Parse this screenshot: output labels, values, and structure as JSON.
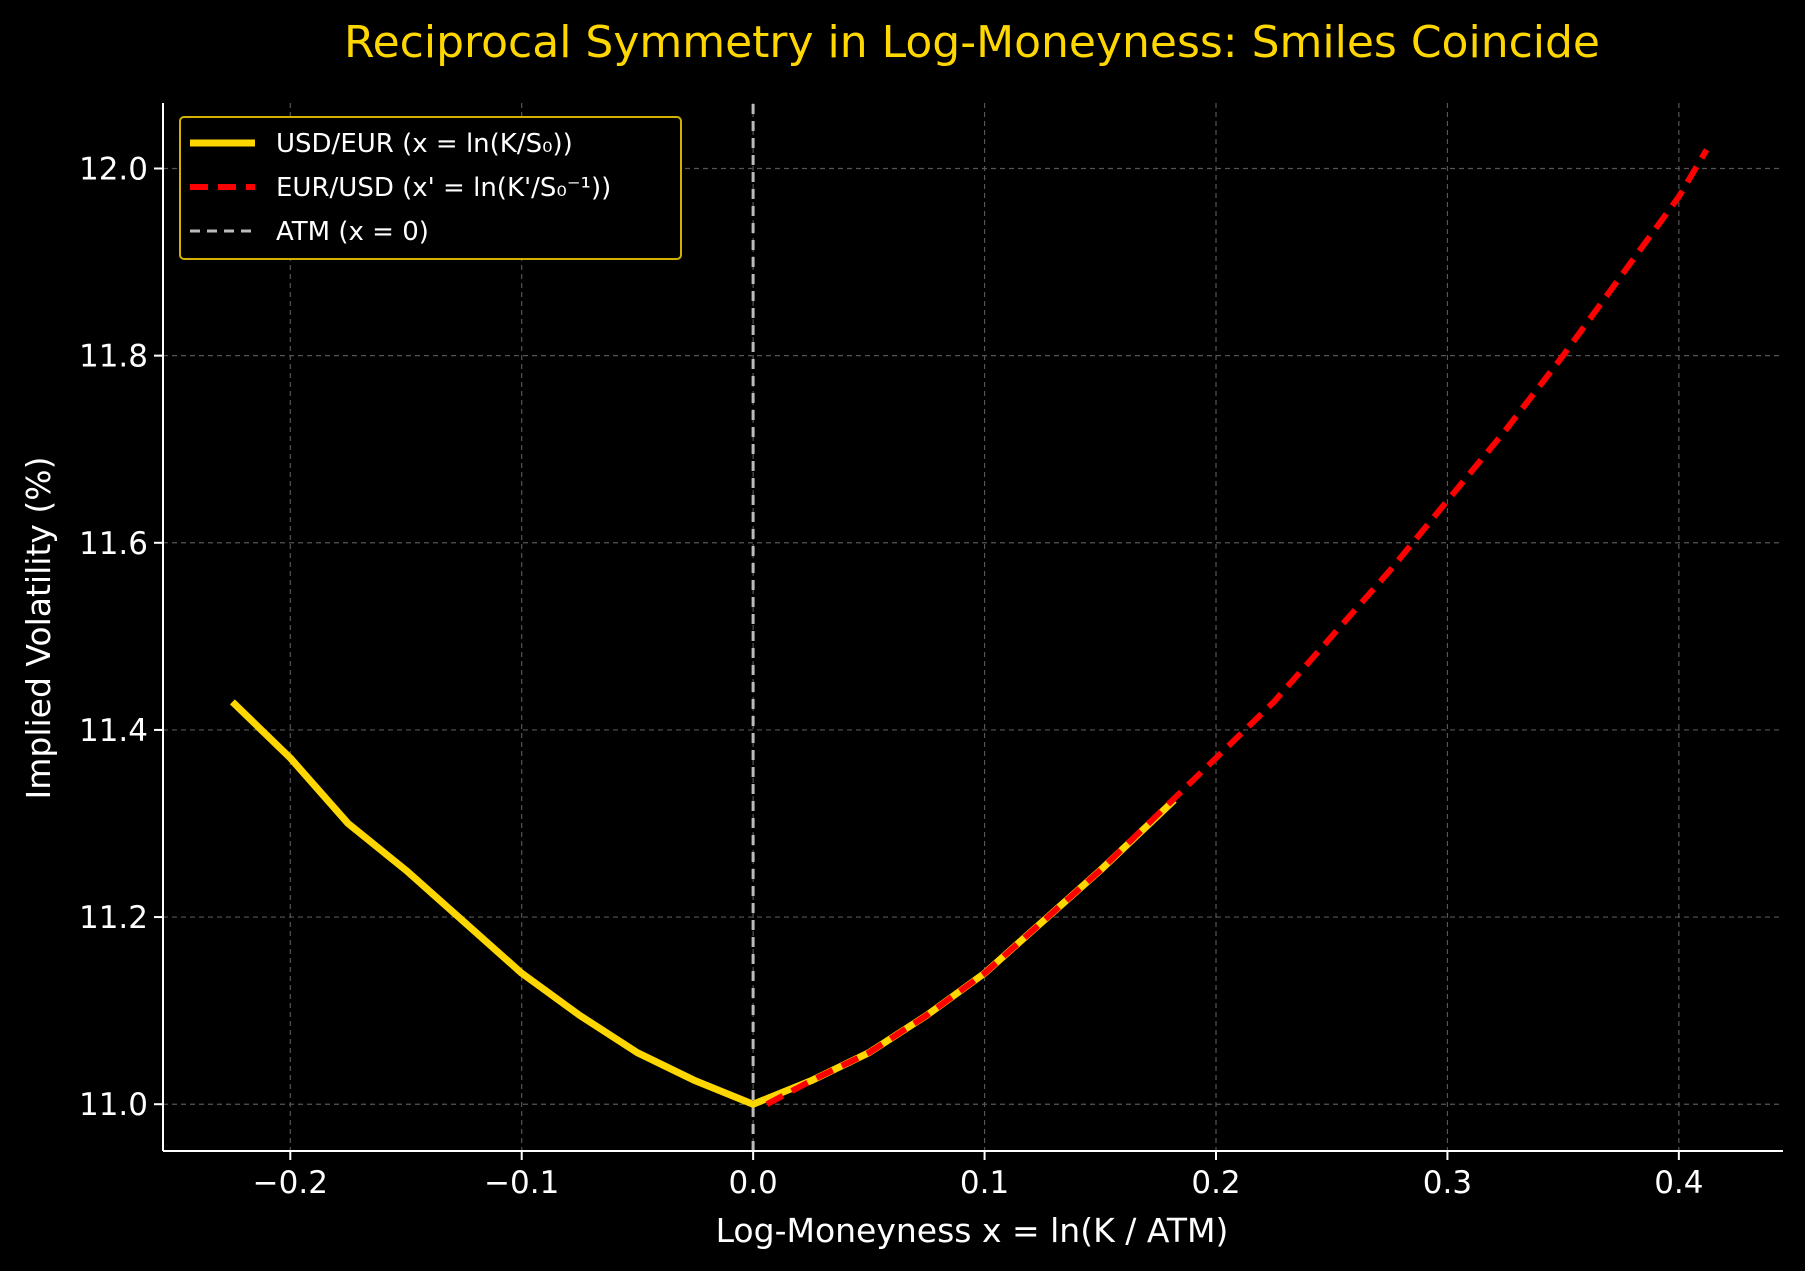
{
  "chart_data": {
    "type": "line",
    "title": "Reciprocal Symmetry in Log-Moneyness: Smiles Coincide",
    "xlabel": "Log-Moneyness  x = ln(K / ATM)",
    "ylabel": "Implied Volatility (%)",
    "xlim": [
      -0.255,
      0.445
    ],
    "ylim": [
      10.95,
      12.07
    ],
    "x_ticks": [
      -0.2,
      -0.1,
      0.0,
      0.1,
      0.2,
      0.3,
      0.4
    ],
    "x_tick_labels": [
      "−0.2",
      "−0.1",
      "0.0",
      "0.1",
      "0.2",
      "0.3",
      "0.4"
    ],
    "y_ticks": [
      11.0,
      11.2,
      11.4,
      11.6,
      11.8,
      12.0
    ],
    "y_tick_labels": [
      "11.0",
      "11.2",
      "11.4",
      "11.6",
      "11.8",
      "12.0"
    ],
    "grid": true,
    "legend_position": "upper-left",
    "series": [
      {
        "name": "USD/EUR (x = ln(K/S₀))",
        "color": "#FFD700",
        "style": "solid",
        "x": [
          -0.225,
          -0.2,
          -0.175,
          -0.15,
          -0.125,
          -0.1,
          -0.075,
          -0.05,
          -0.025,
          0.0,
          0.025,
          0.05,
          0.075,
          0.1,
          0.125,
          0.15,
          0.182
        ],
        "y": [
          11.43,
          11.37,
          11.3,
          11.25,
          11.195,
          11.14,
          11.095,
          11.055,
          11.025,
          11.0,
          11.025,
          11.055,
          11.095,
          11.14,
          11.195,
          11.25,
          11.325
        ]
      },
      {
        "name": "EUR/USD (x' = ln(K'/S₀⁻¹))",
        "color": "#FF0000",
        "style": "dashed",
        "x": [
          0.006,
          0.025,
          0.05,
          0.075,
          0.1,
          0.125,
          0.15,
          0.175,
          0.2,
          0.225,
          0.25,
          0.275,
          0.3,
          0.325,
          0.35,
          0.375,
          0.4,
          0.412
        ],
        "y": [
          11.0,
          11.025,
          11.055,
          11.095,
          11.14,
          11.195,
          11.25,
          11.31,
          11.37,
          11.43,
          11.5,
          11.57,
          11.645,
          11.72,
          11.8,
          11.885,
          11.97,
          12.02
        ]
      },
      {
        "name": "ATM (x = 0)",
        "color": "#BBBBBB",
        "style": "dashed",
        "x": [
          0.0,
          0.0
        ],
        "y": [
          10.95,
          12.07
        ]
      }
    ]
  }
}
